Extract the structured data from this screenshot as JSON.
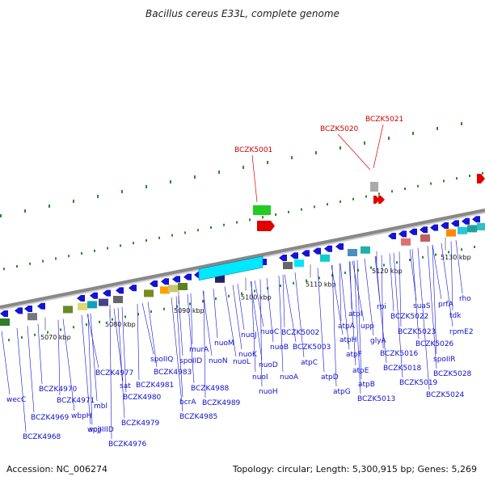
{
  "title": "Bacillus cereus E33L, complete genome",
  "footer": {
    "accession": "Accession: NC_006274",
    "topology": "Topology: circular; Length: 5,300,915 bp; Genes: 5,269"
  },
  "colors": {
    "gene_blue": "#1414d2",
    "highlight_red": "#e00000",
    "backbone": "#888888",
    "tick_green": "#2a8a2a"
  },
  "kbp_labels": [
    {
      "text": "5070 kbp"
    },
    {
      "text": "5080 kbp"
    },
    {
      "text": "5090 kbp"
    },
    {
      "text": "5100 kbp"
    },
    {
      "text": "5110 kbp"
    },
    {
      "text": "5120 kbp"
    },
    {
      "text": "5130 kbp"
    }
  ],
  "highlight_labels": [
    "BCZK5001",
    "BCZK5020",
    "BCZK5021"
  ],
  "gene_labels": [
    "wecC",
    "BCZK4968",
    "BCZK4969",
    "BCZK4970",
    "BCZK4971",
    "wbpH",
    "wcjJ",
    "mbl",
    "spoIIID",
    "BCZK4976",
    "BCZK4977",
    "sat",
    "BCZK4979",
    "BCZK4980",
    "BCZK4981",
    "spoIIQ",
    "BCZK4983",
    "bcrA",
    "spoIID",
    "murA",
    "BCZK4985",
    "nuoN",
    "BCZK4988",
    "nuoM",
    "BCZK4989",
    "nuoL",
    "nuoK",
    "nuoJ",
    "nuoI",
    "nuoH",
    "nuoD",
    "nuoC",
    "nuoB",
    "nuoA",
    "BCZK5002",
    "BCZK5003",
    "atpC",
    "atpD",
    "atpG",
    "atpA",
    "atpH",
    "atpF",
    "atpE",
    "atpB",
    "atpI",
    "upp",
    "glyA",
    "BCZK5013",
    "rpi",
    "BCZK5016",
    "BCZK5018",
    "BCZK5019",
    "suaS",
    "BCZK5022",
    "BCZK5023",
    "BCZK5024",
    "prfA",
    "BCZK5026",
    "spoIIR",
    "tdk",
    "rpmE2",
    "BCZK5028",
    "rho"
  ]
}
